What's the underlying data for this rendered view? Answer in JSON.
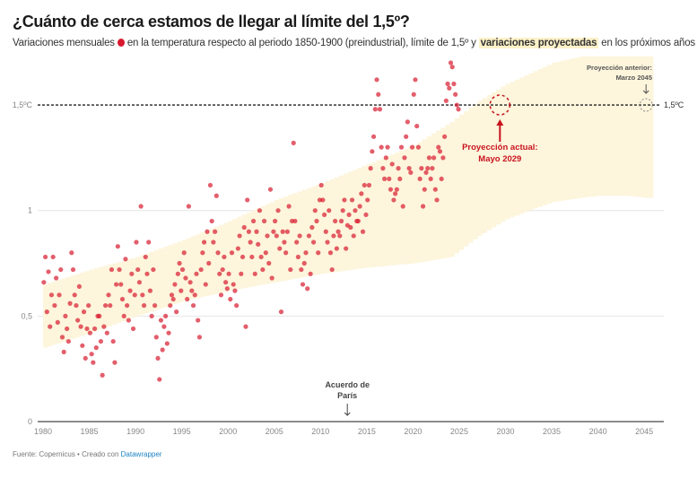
{
  "header": {
    "title": "¿Cuánto de cerca estamos de llegar al límite del 1,5º?",
    "subtitle_a": "Variaciones mensuales",
    "subtitle_b": "en la temperatura respecto al periodo 1850-1900 (preindustrial), límite de 1,5º y",
    "subtitle_highlight": "variaciones proyectadas",
    "subtitle_c": "en los próximos años"
  },
  "footer": {
    "source": "Fuente: Copernicus • Creado con",
    "link": "Datawrapper"
  },
  "colors": {
    "points": "#d7192e",
    "band": "#fdf5dc",
    "annotation": "#c8141e",
    "link": "#1b82c4"
  },
  "chart_data": {
    "type": "scatter",
    "xlim": [
      1980,
      2046
    ],
    "ylim": [
      0,
      1.75
    ],
    "x_ticks": [
      "1980",
      "1985",
      "1990",
      "1995",
      "2000",
      "2005",
      "2010",
      "2015",
      "2020",
      "2025",
      "2030",
      "2035",
      "2040",
      "2045"
    ],
    "y_ticks": [
      {
        "v": 0,
        "label": "0"
      },
      {
        "v": 0.5,
        "label": "0,5"
      },
      {
        "v": 1,
        "label": "1"
      },
      {
        "v": 1.5,
        "label": "1,5ºC"
      }
    ],
    "threshold": {
      "value": 1.5,
      "label": "1,5ºC"
    },
    "projection_band": [
      [
        1980,
        0.35,
        0.65
      ],
      [
        1985,
        0.42,
        0.72
      ],
      [
        1990,
        0.5,
        0.78
      ],
      [
        1995,
        0.57,
        0.86
      ],
      [
        2000,
        0.62,
        0.95
      ],
      [
        2005,
        0.66,
        1.05
      ],
      [
        2010,
        0.7,
        1.13
      ],
      [
        2015,
        0.73,
        1.22
      ],
      [
        2020,
        0.75,
        1.31
      ],
      [
        2024,
        0.78,
        1.42
      ],
      [
        2027,
        0.88,
        1.52
      ],
      [
        2030,
        0.96,
        1.6
      ],
      [
        2033,
        1.01,
        1.66
      ],
      [
        2035,
        1.04,
        1.7
      ],
      [
        2038,
        1.06,
        1.73
      ],
      [
        2040,
        1.07,
        1.73
      ],
      [
        2043,
        1.07,
        1.73
      ],
      [
        2045,
        1.06,
        1.73
      ],
      [
        2046,
        1.06,
        1.73
      ]
    ],
    "monthly_anomalies": {
      "1980": [
        0.66,
        0.78,
        0.52,
        0.71,
        0.45,
        0.6
      ],
      "1981": [
        0.78,
        0.55,
        0.68,
        0.47,
        0.6,
        0.72
      ],
      "1982": [
        0.4,
        0.33,
        0.5,
        0.44,
        0.38,
        0.56
      ],
      "1983": [
        0.8,
        0.72,
        0.6,
        0.55,
        0.48,
        0.64
      ],
      "1984": [
        0.45,
        0.36,
        0.52,
        0.3,
        0.44,
        0.55
      ],
      "1985": [
        0.42,
        0.32,
        0.28,
        0.44,
        0.35,
        0.5
      ],
      "1986": [
        0.5,
        0.38,
        0.22,
        0.45,
        0.55,
        0.42
      ],
      "1987": [
        0.6,
        0.55,
        0.72,
        0.38,
        0.28,
        0.65
      ],
      "1988": [
        0.83,
        0.72,
        0.65,
        0.58,
        0.5,
        0.77
      ],
      "1989": [
        0.55,
        0.48,
        0.62,
        0.7,
        0.44,
        0.6
      ],
      "1990": [
        0.85,
        0.72,
        0.66,
        1.02,
        0.6,
        0.55
      ],
      "1991": [
        0.78,
        0.7,
        0.85,
        0.62,
        0.5,
        0.72
      ],
      "1992": [
        0.55,
        0.4,
        0.3,
        0.2,
        0.48,
        0.34
      ],
      "1993": [
        0.45,
        0.5,
        0.37,
        0.42,
        0.55,
        0.6
      ],
      "1994": [
        0.58,
        0.65,
        0.52,
        0.7,
        0.75,
        0.62
      ],
      "1995": [
        0.72,
        0.8,
        0.68,
        0.58,
        1.02,
        0.66
      ],
      "1996": [
        0.62,
        0.55,
        0.6,
        0.7,
        0.48,
        0.4
      ],
      "1997": [
        0.72,
        0.8,
        0.85,
        0.65,
        0.9,
        0.75
      ],
      "1998": [
        1.12,
        0.95,
        0.85,
        0.9,
        1.07,
        0.8
      ],
      "1999": [
        0.7,
        0.6,
        0.72,
        0.78,
        0.66,
        0.63
      ],
      "2000": [
        0.7,
        0.58,
        0.8,
        0.65,
        0.62,
        0.55
      ],
      "2001": [
        0.82,
        0.88,
        0.7,
        0.78,
        0.92,
        0.45
      ],
      "2002": [
        1.05,
        0.9,
        0.85,
        0.78,
        0.95,
        0.7
      ],
      "2003": [
        0.9,
        0.84,
        1.0,
        0.78,
        0.72,
        0.95
      ],
      "2004": [
        0.8,
        0.88,
        0.75,
        1.1,
        0.68,
        0.9
      ],
      "2005": [
        0.95,
        0.88,
        1.0,
        0.82,
        0.52,
        0.9
      ],
      "2006": [
        0.85,
        0.8,
        0.9,
        1.02,
        0.72,
        0.95
      ],
      "2007": [
        1.32,
        0.95,
        0.85,
        0.78,
        0.88,
        0.72
      ],
      "2008": [
        0.65,
        0.75,
        0.8,
        0.63,
        0.88,
        0.7
      ],
      "2009": [
        0.92,
        0.85,
        1.0,
        0.95,
        0.8,
        1.05
      ],
      "2010": [
        1.12,
        1.05,
        0.98,
        0.9,
        0.85,
        1.0
      ],
      "2011": [
        0.8,
        0.72,
        0.88,
        0.95,
        0.82,
        0.9
      ],
      "2012": [
        0.88,
        0.95,
        1.0,
        1.05,
        0.82,
        0.93
      ],
      "2013": [
        0.98,
        0.92,
        1.05,
        0.88,
        1.0,
        0.95
      ],
      "2014": [
        0.95,
        1.02,
        1.08,
        0.9,
        1.12,
        0.98
      ],
      "2015": [
        1.05,
        1.12,
        1.2,
        1.28,
        1.35,
        1.48
      ],
      "2016": [
        1.62,
        1.55,
        1.48,
        1.3,
        1.2,
        1.15
      ],
      "2017": [
        1.25,
        1.3,
        1.15,
        1.1,
        1.22,
        1.05
      ],
      "2018": [
        1.08,
        1.1,
        1.2,
        1.15,
        1.3,
        1.02
      ],
      "2019": [
        1.25,
        1.35,
        1.42,
        1.2,
        1.18,
        1.3
      ],
      "2020": [
        1.55,
        1.62,
        1.4,
        1.3,
        1.15,
        1.2
      ],
      "2021": [
        1.02,
        1.1,
        1.18,
        1.2,
        1.25,
        1.15
      ],
      "2022": [
        1.2,
        1.25,
        1.1,
        1.05,
        1.3,
        1.28
      ],
      "2023": [
        1.15,
        1.25,
        1.35,
        1.52,
        1.6,
        1.58
      ],
      "2024": [
        1.7,
        1.68,
        1.6,
        1.55,
        1.5,
        1.48
      ]
    },
    "annotations": [
      {
        "id": "current",
        "text_line1": "Proyección actual:",
        "text_line2": "Mayo 2029",
        "year": 2029.4,
        "value": 1.5
      },
      {
        "id": "previous",
        "text_line1": "Proyección anterior:",
        "text_line2": "Marzo 2045",
        "year": 2045.2,
        "value": 1.5
      },
      {
        "id": "paris",
        "text_line1": "Acuerdo de",
        "text_line2": "París",
        "year": 2012.9
      }
    ]
  }
}
